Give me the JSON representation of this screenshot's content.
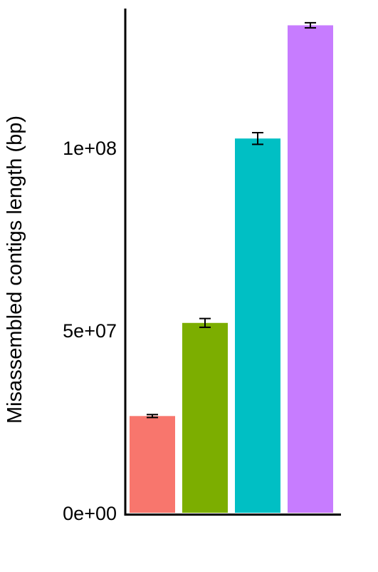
{
  "chart_data": {
    "type": "bar",
    "title": "",
    "xlabel": "",
    "ylabel": "Misassembled contigs length (bp)",
    "ylim": [
      0,
      135000000
    ],
    "yticks": [
      {
        "value": 0,
        "label": "0e+00"
      },
      {
        "value": 50000000,
        "label": "5e+07"
      },
      {
        "value": 100000000,
        "label": "1e+08"
      }
    ],
    "grid": false,
    "legend": "none",
    "bars": [
      {
        "value": 26500000,
        "error": 400000,
        "color": "#F8766D"
      },
      {
        "value": 52000000,
        "error": 1200000,
        "color": "#7CAE00"
      },
      {
        "value": 102500000,
        "error": 1600000,
        "color": "#00BFC4"
      },
      {
        "value": 133500000,
        "error": 700000,
        "color": "#C77CFF"
      }
    ]
  }
}
